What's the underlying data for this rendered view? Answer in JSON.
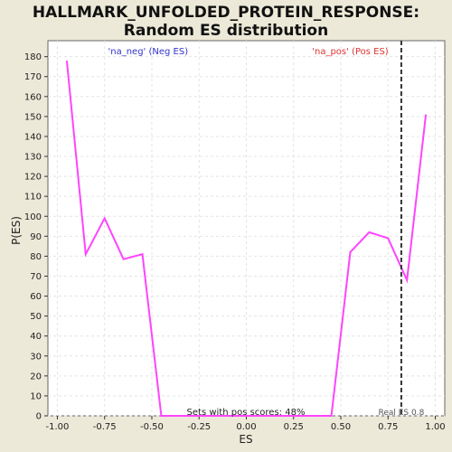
{
  "chart_data": {
    "type": "line",
    "title": [
      "HALLMARK_UNFOLDED_PROTEIN_RESPONSE:",
      "Random ES distribution"
    ],
    "x_label": "ES",
    "y_label": "P(ES)",
    "x": [
      -0.95,
      -0.85,
      -0.75,
      -0.65,
      -0.55,
      -0.45,
      -0.35,
      -0.25,
      -0.15,
      -0.05,
      0.05,
      0.15,
      0.25,
      0.35,
      0.45,
      0.55,
      0.65,
      0.75,
      0.85,
      0.95
    ],
    "values": [
      178,
      81,
      99,
      78.5,
      81,
      0,
      0,
      0,
      0,
      0,
      0,
      0,
      0,
      0,
      0,
      82,
      92,
      89,
      68,
      151
    ],
    "color": "#ff44ff",
    "xlim": [
      -1.05,
      1.05
    ],
    "ylim": [
      0,
      188
    ],
    "xticks": [
      {
        "value": -1,
        "label": "-1.00"
      },
      {
        "value": -0.75,
        "label": "-0.75"
      },
      {
        "value": -0.5,
        "label": "-0.50"
      },
      {
        "value": -0.25,
        "label": "-0.25"
      },
      {
        "value": 0,
        "label": "0.00"
      },
      {
        "value": 0.25,
        "label": "0.25"
      },
      {
        "value": 0.5,
        "label": "0.50"
      },
      {
        "value": 0.75,
        "label": "0.75"
      },
      {
        "value": 1,
        "label": "1.00"
      }
    ],
    "yticks": [
      0,
      10,
      20,
      30,
      40,
      50,
      60,
      70,
      80,
      90,
      100,
      110,
      120,
      130,
      140,
      150,
      160,
      170,
      180
    ],
    "grid": true,
    "real_es": 0.82,
    "real_es_label": "Real ES 0.8",
    "annotations": [
      {
        "text": "'na_neg' (Neg ES)",
        "color": "#3333cc",
        "x": -0.52
      },
      {
        "text": "'na_pos' (Pos ES)",
        "color": "#dd3333",
        "x": 0.55
      }
    ],
    "footnote": "Sets with pos scores: 48%"
  }
}
